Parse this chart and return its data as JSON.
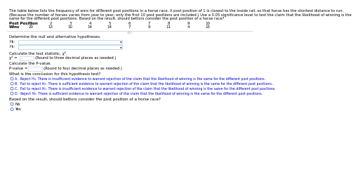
{
  "title_lines": [
    "The table below lists the frequency of wins for different post positions in a horse race. A post position of 1 is closest to the inside rail, so that horse has the shortest distance to run.",
    "(Because the number of horses varies from year to year, only the first 10 post positions are included.) Use a 0.05 significance level to test the claim that the likelihood of winning is the",
    "same for the different post positions. Based on the result, should bettors consider the post position of a horse race?"
  ],
  "post_positions": [
    "1",
    "2",
    "3",
    "4",
    "5",
    "6",
    "7",
    "8",
    "9",
    "10"
  ],
  "wins": [
    "20",
    "13",
    "10",
    "14",
    "14",
    "7",
    "9",
    "11",
    "4",
    "15"
  ],
  "row_labels": [
    "Post Position",
    "Wins"
  ],
  "section1_label": "Determine the null and alternative hypotheses.",
  "h0_label": "H₀:",
  "h1_label": "H₁:",
  "section2_label": "Calculate the test statistic, χ².",
  "chi_line1": "χ² =",
  "chi_line2": "(Round to three decimal places as needed.)",
  "section3_label": "Calculate the P-value.",
  "pv_line1": "P-value =",
  "pv_line2": "(Round to four decimal places as needed.)",
  "section4_label": "What is the conclusion for this hypothesis test?",
  "options": [
    "A.  Reject H₀. There is insufficient evidence to warrant rejection of the claim that the likelihood of winning is the same for the different post positions.",
    "B.  Fail to reject H₀. There is sufficient evidence to warrant rejection of the claim that the likelihood of winning is the same for the different post positions..",
    "C.  Fail to reject H₀. There is insufficient evidence to warrant rejection of the claim that the likelihood of winning is the same for the different post positions.",
    "D.  Reject H₀. There is sufficient evidence to warrant rejection of the claim that the likelihood of winning is the same for the different post positions."
  ],
  "section5_label": "Based on the result, should bettors consider the post position of a horse race?",
  "radio_options": [
    "No",
    "Yes"
  ],
  "bg_color": "#ffffff",
  "text_color": "#000000",
  "blue_text": "#0000cc",
  "radio_edge": "#3355aa",
  "box_edge": "#aaccee"
}
